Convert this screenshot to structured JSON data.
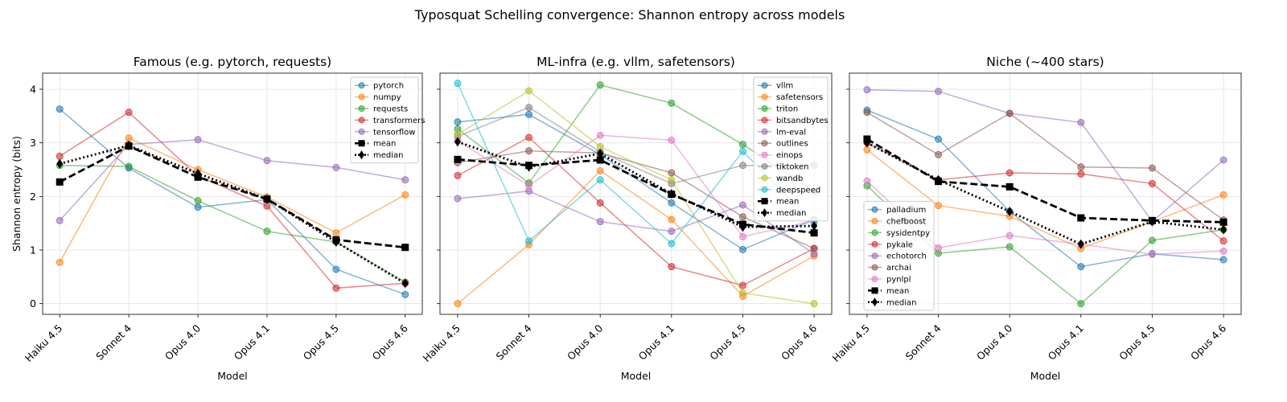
{
  "figure_title": "Typosquat Schelling convergence: Shannon entropy across models",
  "chart_data": [
    {
      "type": "line",
      "title": "Famous (e.g. pytorch, requests)",
      "xlabel": "Model",
      "ylabel": "Shannon entropy (bits)",
      "categories": [
        "Haiku 4.5",
        "Sonnet 4",
        "Opus 4.0",
        "Opus 4.1",
        "Opus 4.5",
        "Opus 4.6"
      ],
      "ylim": [
        -0.2,
        4.3
      ],
      "yticks": [
        "0",
        "1",
        "2",
        "3",
        "4"
      ],
      "grid": true,
      "legend_position": "top-right",
      "series": [
        {
          "name": "pytorch",
          "color": "#1f77b4",
          "values": [
            3.63,
            2.53,
            1.8,
            1.94,
            0.64,
            0.17
          ]
        },
        {
          "name": "numpy",
          "color": "#ff7f0e",
          "values": [
            0.77,
            3.09,
            2.5,
            1.99,
            1.32,
            2.03
          ]
        },
        {
          "name": "requests",
          "color": "#2ca02c",
          "values": [
            2.58,
            2.56,
            1.92,
            1.35,
            1.15,
            0.4
          ]
        },
        {
          "name": "transformers",
          "color": "#d62728",
          "values": [
            2.75,
            3.57,
            2.38,
            1.82,
            0.29,
            0.38
          ]
        },
        {
          "name": "tensorflow",
          "color": "#9467bd",
          "values": [
            1.55,
            2.97,
            3.06,
            2.67,
            2.54,
            2.31
          ]
        },
        {
          "name": "mean",
          "color": "#000000",
          "values": [
            2.27,
            2.94,
            2.36,
            1.95,
            1.19,
            1.05
          ]
        },
        {
          "name": "median",
          "color": "#000000",
          "values": [
            2.61,
            2.95,
            2.43,
            1.95,
            1.15,
            0.38
          ]
        }
      ]
    },
    {
      "type": "line",
      "title": "ML-infra (e.g. vllm, safetensors)",
      "xlabel": "Model",
      "ylabel": "",
      "categories": [
        "Haiku 4.5",
        "Sonnet 4",
        "Opus 4.0",
        "Opus 4.1",
        "Opus 4.5",
        "Opus 4.6"
      ],
      "ylim": [
        -0.2,
        4.3
      ],
      "yticks": [],
      "grid": true,
      "legend_position": "top-right",
      "series": [
        {
          "name": "vllm",
          "color": "#1f77b4",
          "values": [
            3.39,
            3.53,
            2.78,
            1.88,
            1.01,
            1.57
          ]
        },
        {
          "name": "safetensors",
          "color": "#ff7f0e",
          "values": [
            0.0,
            1.1,
            2.48,
            1.57,
            0.14,
            0.89
          ]
        },
        {
          "name": "triton",
          "color": "#2ca02c",
          "values": [
            3.26,
            2.25,
            4.08,
            3.74,
            2.97,
            2.1
          ]
        },
        {
          "name": "bitsandbytes",
          "color": "#d62728",
          "values": [
            2.39,
            3.1,
            1.88,
            0.69,
            0.34,
            1.03
          ]
        },
        {
          "name": "lm-eval",
          "color": "#9467bd",
          "values": [
            1.96,
            2.1,
            1.53,
            1.35,
            1.84,
            0.93
          ]
        },
        {
          "name": "outlines",
          "color": "#8c564b",
          "values": [
            2.63,
            2.85,
            2.81,
            2.44,
            1.62,
            1.03
          ]
        },
        {
          "name": "einops",
          "color": "#e377c2",
          "values": [
            3.04,
            2.2,
            3.14,
            3.05,
            1.25,
            1.55
          ]
        },
        {
          "name": "tiktoken",
          "color": "#7f7f7f",
          "values": [
            3.12,
            3.66,
            2.83,
            2.24,
            2.58,
            2.58
          ]
        },
        {
          "name": "wandb",
          "color": "#bcbd22",
          "values": [
            3.16,
            3.97,
            2.93,
            2.31,
            0.2,
            0.0
          ]
        },
        {
          "name": "deepspeed",
          "color": "#17becf",
          "values": [
            4.11,
            1.17,
            2.31,
            1.12,
            2.84,
            1.5
          ]
        },
        {
          "name": "mean",
          "color": "#000000",
          "values": [
            2.69,
            2.58,
            2.68,
            2.04,
            1.48,
            1.32
          ]
        },
        {
          "name": "median",
          "color": "#000000",
          "values": [
            3.02,
            2.55,
            2.8,
            2.05,
            1.43,
            1.45
          ]
        }
      ]
    },
    {
      "type": "line",
      "title": "Niche (~400 stars)",
      "xlabel": "Model",
      "ylabel": "",
      "categories": [
        "Haiku 4.5",
        "Sonnet 4",
        "Opus 4.0",
        "Opus 4.1",
        "Opus 4.5",
        "Opus 4.6"
      ],
      "ylim": [
        -0.2,
        4.3
      ],
      "yticks": [],
      "grid": true,
      "legend_position": "bottom-left",
      "series": [
        {
          "name": "palladium",
          "color": "#1f77b4",
          "values": [
            3.61,
            3.07,
            1.72,
            0.69,
            0.93,
            0.82
          ]
        },
        {
          "name": "chefboost",
          "color": "#ff7f0e",
          "values": [
            2.87,
            1.83,
            1.63,
            1.03,
            1.53,
            2.03
          ]
        },
        {
          "name": "sysidentpy",
          "color": "#2ca02c",
          "values": [
            2.2,
            0.94,
            1.06,
            0.0,
            1.18,
            1.38
          ]
        },
        {
          "name": "pykale",
          "color": "#d62728",
          "values": [
            3.0,
            2.31,
            2.44,
            2.42,
            2.24,
            1.17
          ]
        },
        {
          "name": "echotorch",
          "color": "#9467bd",
          "values": [
            3.99,
            3.96,
            3.55,
            3.38,
            1.53,
            2.68
          ]
        },
        {
          "name": "archai",
          "color": "#8c564b",
          "values": [
            3.57,
            2.78,
            3.55,
            2.55,
            2.53,
            1.56
          ]
        },
        {
          "name": "pynlpl",
          "color": "#e377c2",
          "values": [
            2.29,
            1.04,
            1.27,
            1.11,
            0.92,
            0.98
          ]
        },
        {
          "name": "mean",
          "color": "#000000",
          "values": [
            3.07,
            2.28,
            2.18,
            1.6,
            1.55,
            1.52
          ]
        },
        {
          "name": "median",
          "color": "#000000",
          "values": [
            3.0,
            2.31,
            1.72,
            1.11,
            1.53,
            1.38
          ]
        }
      ]
    }
  ]
}
